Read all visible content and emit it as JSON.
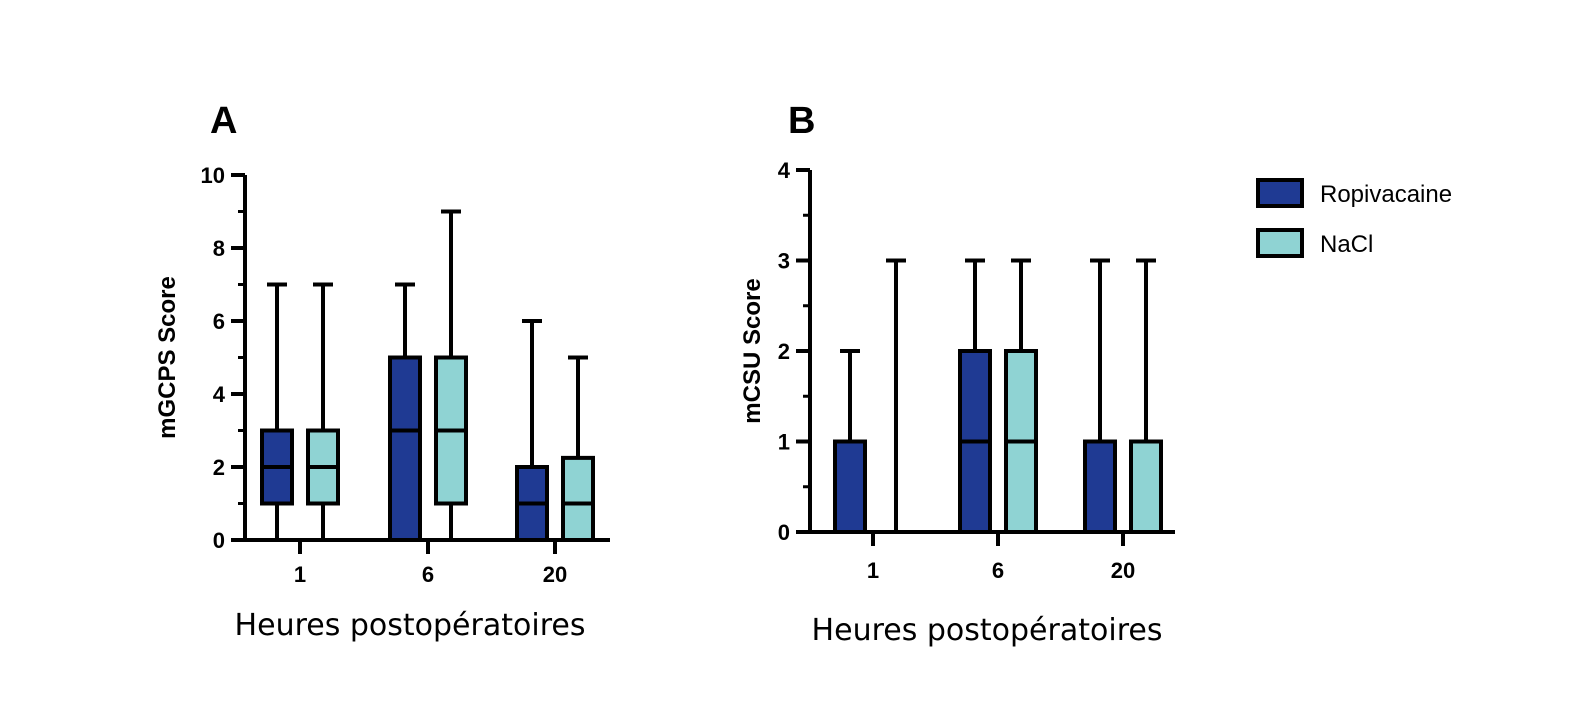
{
  "colors": {
    "ropivacaine": "#1f3a93",
    "nacl": "#8fd3d3",
    "stroke": "#000000"
  },
  "legend": [
    {
      "label": "Ropivacaine",
      "color": "#1f3a93"
    },
    {
      "label": "NaCl",
      "color": "#8fd3d3"
    }
  ],
  "chart_data": [
    {
      "type": "box",
      "panel_label": "A",
      "xlabel": "Heures postopératoires",
      "ylabel": "mGCPS Score",
      "ylim": [
        0,
        10
      ],
      "yticks": [
        0,
        2,
        4,
        6,
        8,
        10
      ],
      "categories": [
        "1",
        "6",
        "20"
      ],
      "series": [
        {
          "name": "Ropivacaine",
          "boxes": [
            {
              "min": 0,
              "q1": 1,
              "median": 2,
              "q3": 3,
              "max": 7
            },
            {
              "min": 0,
              "q1": 0,
              "median": 3,
              "q3": 5,
              "max": 7
            },
            {
              "min": 0,
              "q1": 0,
              "median": 1,
              "q3": 2,
              "max": 6
            }
          ]
        },
        {
          "name": "NaCl",
          "boxes": [
            {
              "min": 0,
              "q1": 1,
              "median": 2,
              "q3": 3,
              "max": 7
            },
            {
              "min": 0,
              "q1": 1,
              "median": 3,
              "q3": 5,
              "max": 9
            },
            {
              "min": 0,
              "q1": 0,
              "median": 1,
              "q3": 2.25,
              "max": 5
            }
          ]
        }
      ]
    },
    {
      "type": "box",
      "panel_label": "B",
      "xlabel": "Heures postopératoires",
      "ylabel": "mCSU Score",
      "ylim": [
        0,
        4
      ],
      "yticks": [
        0,
        1,
        2,
        3,
        4
      ],
      "categories": [
        "1",
        "6",
        "20"
      ],
      "series": [
        {
          "name": "Ropivacaine",
          "boxes": [
            {
              "min": 0,
              "q1": 0,
              "median": 0,
              "q3": 1,
              "max": 2
            },
            {
              "min": 0,
              "q1": 0,
              "median": 1,
              "q3": 2,
              "max": 3
            },
            {
              "min": 0,
              "q1": 0,
              "median": 0,
              "q3": 1,
              "max": 3
            }
          ]
        },
        {
          "name": "NaCl",
          "boxes": [
            {
              "min": 0,
              "q1": 0,
              "median": 0,
              "q3": 0,
              "max": 3
            },
            {
              "min": 0,
              "q1": 0,
              "median": 1,
              "q3": 2,
              "max": 3
            },
            {
              "min": 0,
              "q1": 0,
              "median": 0,
              "q3": 1,
              "max": 3
            }
          ]
        }
      ]
    }
  ]
}
